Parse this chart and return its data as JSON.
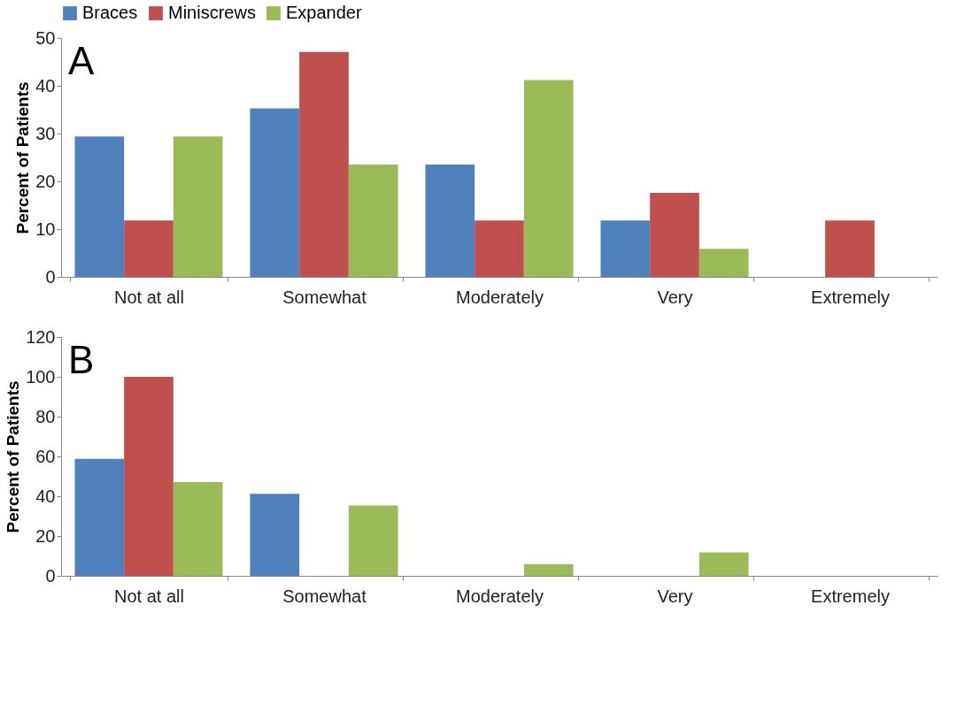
{
  "chart_data": [
    {
      "type": "bar",
      "ylabel": "Percent of Patients",
      "annotations": [
        "A"
      ],
      "categories": [
        "Not at all",
        "Somewhat",
        "Moderately",
        "Very",
        "Extremely"
      ],
      "ylim": [
        0,
        50
      ],
      "yticks": [
        0,
        10,
        20,
        30,
        40,
        50
      ],
      "grid": false,
      "legend": "top",
      "series": [
        {
          "name": "Braces",
          "color": "#4f81bd",
          "values": [
            29.4,
            35.3,
            23.5,
            11.8,
            0
          ]
        },
        {
          "name": "Miniscrews",
          "color": "#c0504d",
          "values": [
            11.8,
            47.1,
            11.8,
            17.6,
            11.8
          ]
        },
        {
          "name": "Expander",
          "color": "#9bbb59",
          "values": [
            29.4,
            23.5,
            41.2,
            5.9,
            0
          ]
        }
      ]
    },
    {
      "type": "bar",
      "ylabel": "Percent of Patients",
      "annotations": [
        "B"
      ],
      "categories": [
        "Not at all",
        "Somewhat",
        "Moderately",
        "Very",
        "Extremely"
      ],
      "ylim": [
        0,
        120
      ],
      "yticks": [
        0,
        20,
        40,
        60,
        80,
        100,
        120
      ],
      "grid": false,
      "legend": false,
      "series": [
        {
          "color": "#4f81bd",
          "values": [
            58.8,
            41.2,
            0,
            0,
            0
          ]
        },
        {
          "color": "#c0504d",
          "values": [
            100,
            0,
            0,
            0,
            0
          ]
        },
        {
          "color": "#9bbb59",
          "values": [
            47.1,
            35.3,
            5.9,
            11.8,
            0
          ]
        }
      ]
    }
  ]
}
